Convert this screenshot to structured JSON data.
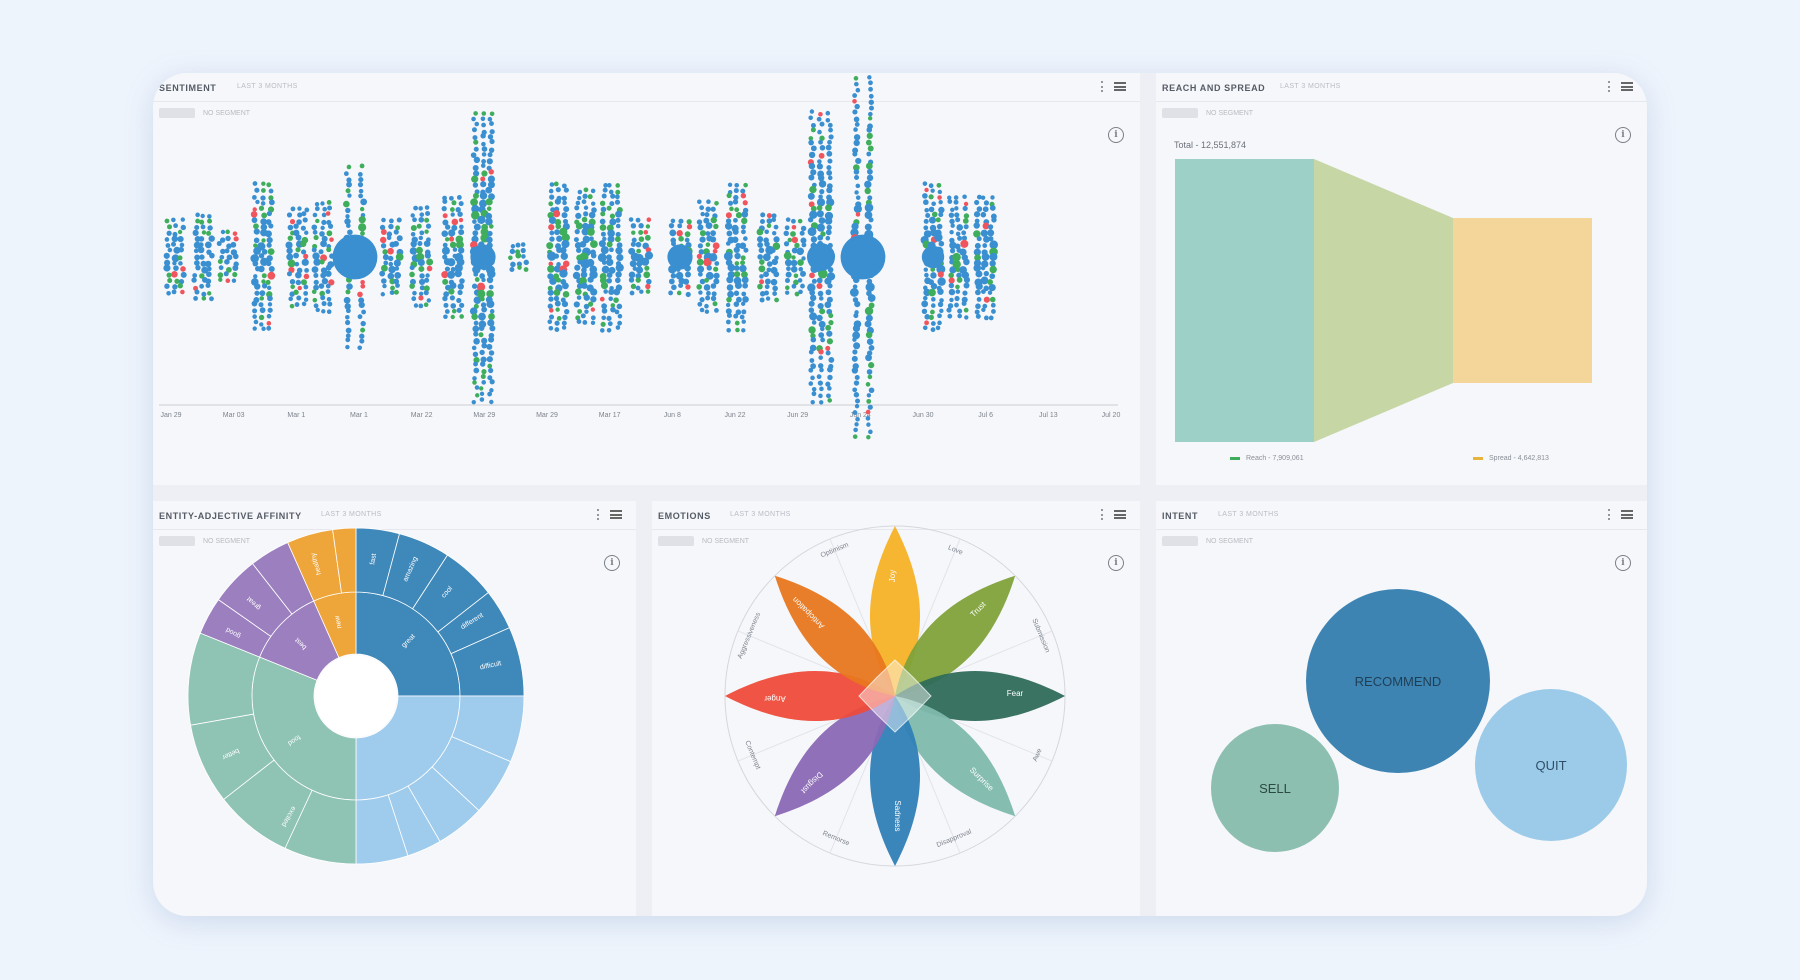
{
  "panels": {
    "sentiment": {
      "title": "SENTIMENT",
      "subtitle": "LAST 3 MONTHS",
      "filter_text": "NO SEGMENT",
      "info_icon": "info-icon",
      "x_ticks": [
        "Jan 29",
        "Mar 03",
        "Mar 1",
        "Mar 1",
        "Mar 22",
        "Mar 29",
        "Mar 29",
        "Mar 17",
        "Jun 8",
        "Jun 22",
        "Jun 29",
        "Jun 24",
        "Jun 30",
        "Jul 6",
        "Jul 13",
        "Jul 20"
      ],
      "colors": {
        "neutral": "#3a8fd0",
        "positive": "#3fae5c",
        "negative": "#f0555e"
      }
    },
    "reach": {
      "title": "REACH AND SPREAD",
      "subtitle": "LAST 3 MONTHS",
      "filter_text": "NO SEGMENT",
      "total_label": "Total - 12,551,874",
      "legend": [
        {
          "label": "Reach - 7,909,061",
          "color": "#3fae5c"
        },
        {
          "label": "Spread - 4,642,813",
          "color": "#e8b33a"
        }
      ],
      "colors": {
        "reach": "#9dd0c7",
        "mid": "#c6d6a5",
        "spread": "#f4d59a"
      }
    },
    "affinity": {
      "title": "ENTITY-ADJECTIVE AFFINITY",
      "subtitle": "LAST 3 MONTHS",
      "filter_text": "NO SEGMENT",
      "inner_labels": [
        "great",
        "best",
        "food",
        "new"
      ],
      "outer_labels": [
        "fast",
        "amazing",
        "cool",
        "different",
        "difficult",
        "good",
        "great",
        "excited",
        "better",
        "healthy"
      ],
      "colors": {
        "blue": "#3f88ba",
        "lightblue": "#9fcbec",
        "teal": "#8fc3b3",
        "purple": "#9c7fbf",
        "orange": "#eea63b"
      }
    },
    "emotions": {
      "title": "EMOTIONS",
      "subtitle": "LAST 3 MONTHS",
      "filter_text": "NO SEGMENT",
      "petals": [
        {
          "label": "Joy",
          "color": "#f5b226"
        },
        {
          "label": "Trust",
          "color": "#7fa23a"
        },
        {
          "label": "Fear",
          "color": "#2f6b5a"
        },
        {
          "label": "Surprise",
          "color": "#7eb9ac"
        },
        {
          "label": "Sadness",
          "color": "#2f7fb6"
        },
        {
          "label": "Disgust",
          "color": "#8a68b4"
        },
        {
          "label": "Anger",
          "color": "#ee4b3a"
        },
        {
          "label": "Anticipation",
          "color": "#e8771f"
        }
      ],
      "ring_labels": [
        "Optimism",
        "Love",
        "Submission",
        "Awe",
        "Disapproval",
        "Remorse",
        "Contempt",
        "Aggressiveness"
      ]
    },
    "intent": {
      "title": "INTENT",
      "subtitle": "LAST 3 MONTHS",
      "filter_text": "NO SEGMENT",
      "bubbles": [
        {
          "label": "RECOMMEND",
          "color": "#3d84b2"
        },
        {
          "label": "SELL",
          "color": "#8dbfb0"
        },
        {
          "label": "QUIT",
          "color": "#9ccbea"
        }
      ]
    }
  }
}
